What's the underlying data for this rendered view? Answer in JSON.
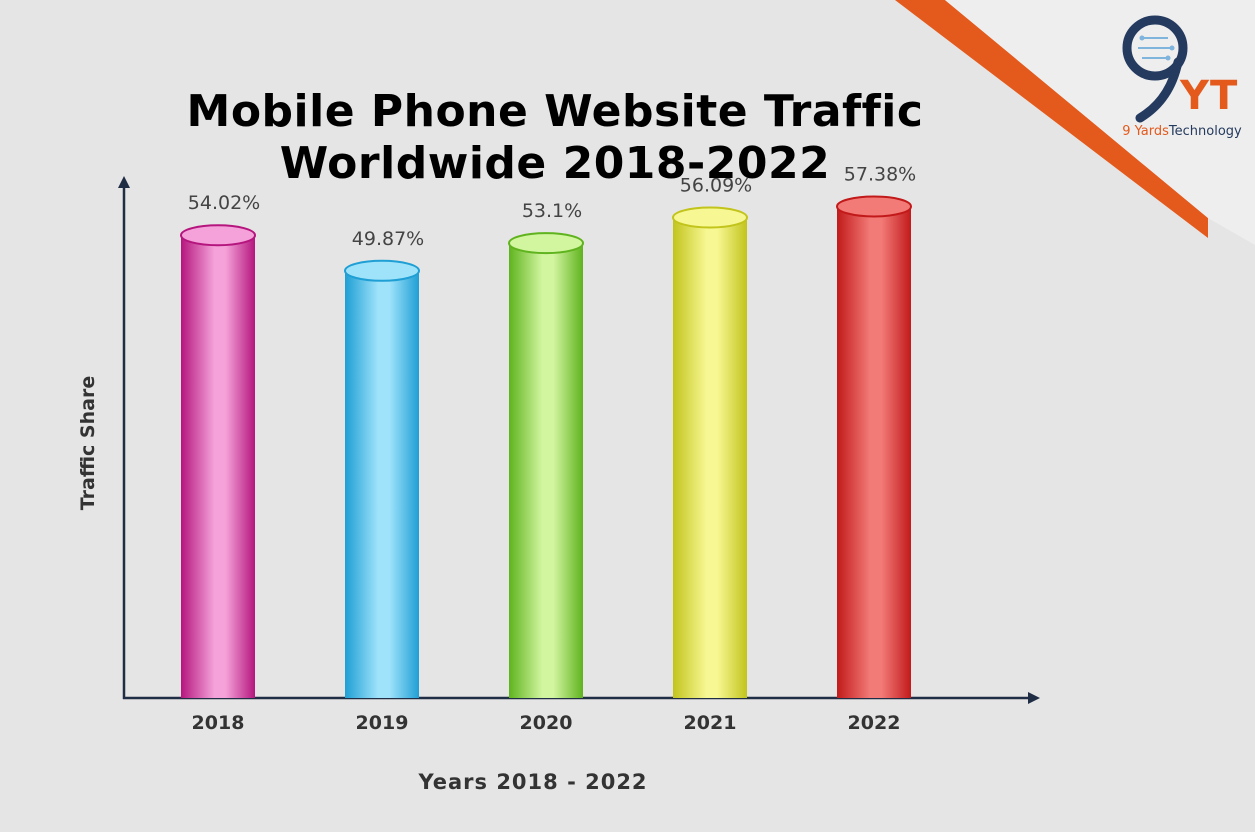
{
  "chart_data": {
    "type": "bar",
    "title_line1": "Mobile Phone Website Traffic",
    "title_line2": "Worldwide 2018-2022",
    "xlabel": "Years 2018 - 2022",
    "ylabel": "Traffic Share",
    "categories": [
      "2018",
      "2019",
      "2020",
      "2021",
      "2022"
    ],
    "values": [
      54.02,
      49.87,
      53.1,
      56.09,
      57.38
    ],
    "value_labels": [
      "54.02%",
      "49.87%",
      "53.1%",
      "56.09%",
      "57.38%"
    ],
    "ylim": [
      0,
      60
    ],
    "grid": false,
    "colors": [
      "#b5167e",
      "#1f9fd4",
      "#5fb31e",
      "#c2c41c",
      "#c21a1a"
    ],
    "highlight_colors": [
      "#f4a2d9",
      "#9fe3fb",
      "#d2f5a0",
      "#f7f793",
      "#f27b78"
    ]
  },
  "logo": {
    "mark": "YT",
    "text_brand": "9 Yards",
    "text_suffix": "Technology",
    "icon": "nine-circuit-icon"
  },
  "colors": {
    "background": "#e6e5e5",
    "accent_stripe": "#e35a1c",
    "axis": "#1f2d45",
    "value_text": "#444444"
  }
}
